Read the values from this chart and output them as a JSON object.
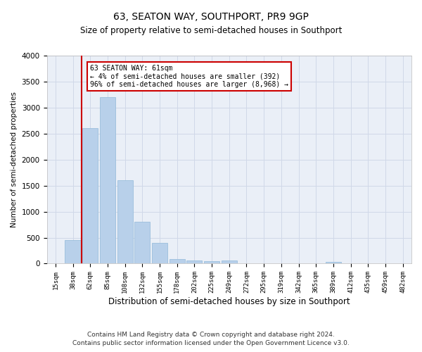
{
  "title": "63, SEATON WAY, SOUTHPORT, PR9 9GP",
  "subtitle": "Size of property relative to semi-detached houses in Southport",
  "xlabel": "Distribution of semi-detached houses by size in Southport",
  "ylabel": "Number of semi-detached properties",
  "footer_line1": "Contains HM Land Registry data © Crown copyright and database right 2024.",
  "footer_line2": "Contains public sector information licensed under the Open Government Licence v3.0.",
  "annotation_title": "63 SEATON WAY: 61sqm",
  "annotation_line1": "← 4% of semi-detached houses are smaller (392)",
  "annotation_line2": "96% of semi-detached houses are larger (8,968) →",
  "bar_categories": [
    "15sqm",
    "38sqm",
    "62sqm",
    "85sqm",
    "108sqm",
    "132sqm",
    "155sqm",
    "178sqm",
    "202sqm",
    "225sqm",
    "249sqm",
    "272sqm",
    "295sqm",
    "319sqm",
    "342sqm",
    "365sqm",
    "389sqm",
    "412sqm",
    "435sqm",
    "459sqm",
    "482sqm"
  ],
  "bar_values": [
    0,
    450,
    2600,
    3200,
    1600,
    800,
    400,
    90,
    55,
    45,
    55,
    0,
    0,
    0,
    0,
    0,
    30,
    0,
    0,
    0,
    0
  ],
  "bar_color": "#b8d0ea",
  "bar_edge_color": "#90b8d8",
  "vline_color": "#cc0000",
  "vline_x": 1.5,
  "ylim": [
    0,
    4000
  ],
  "yticks": [
    0,
    500,
    1000,
    1500,
    2000,
    2500,
    3000,
    3500,
    4000
  ],
  "grid_color": "#d0d8e8",
  "background_color": "#eaeff7"
}
